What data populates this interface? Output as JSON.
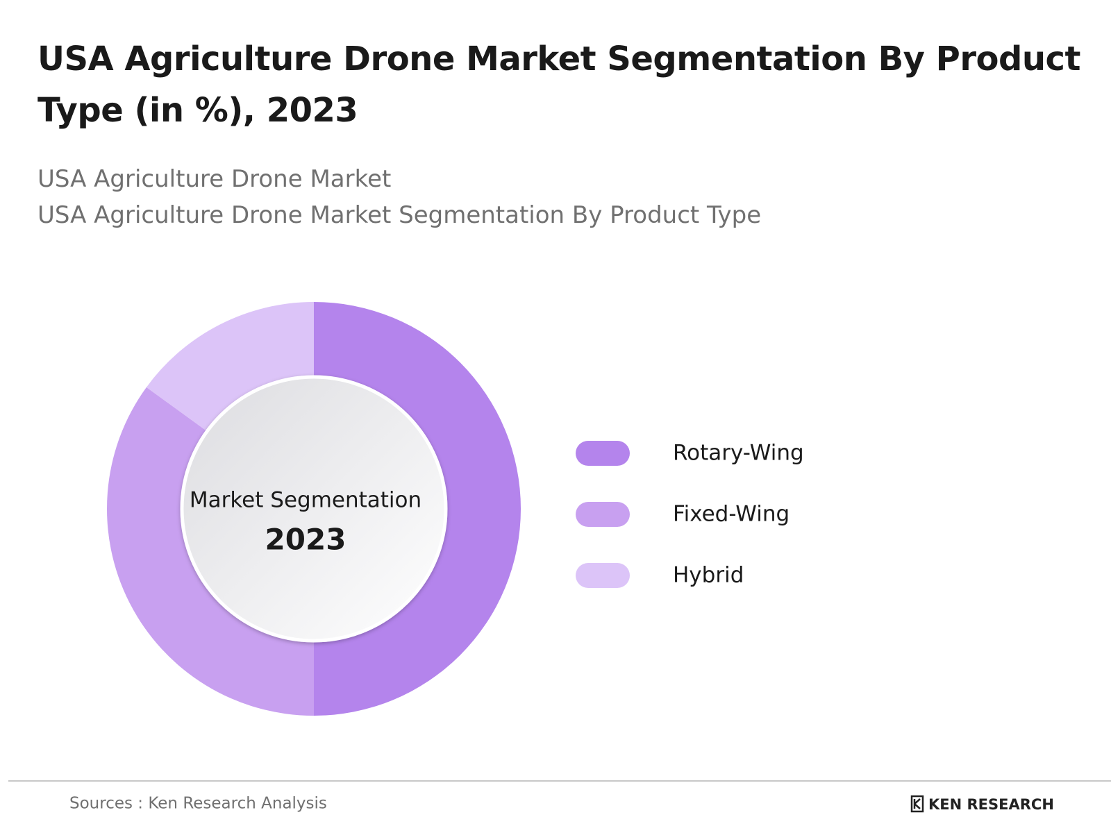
{
  "header": {
    "title": "USA Agriculture Drone Market Segmentation By Product Type (in %), 2023",
    "subtitle_lines": [
      "USA Agriculture Drone Market",
      "USA Agriculture Drone Market Segmentation By Product Type"
    ]
  },
  "chart_data": {
    "type": "pie",
    "donut": true,
    "categories": [
      "Rotary-Wing",
      "Fixed-Wing",
      "Hybrid"
    ],
    "values": [
      50,
      35,
      15
    ],
    "colors": [
      "#b484ec",
      "#c8a0f0",
      "#dcc4f8"
    ],
    "center_label": "Market Segmentation",
    "center_value": "2023"
  },
  "footer": {
    "source": "Sources : Ken Research Analysis",
    "logo": "KEN RESEARCH"
  }
}
